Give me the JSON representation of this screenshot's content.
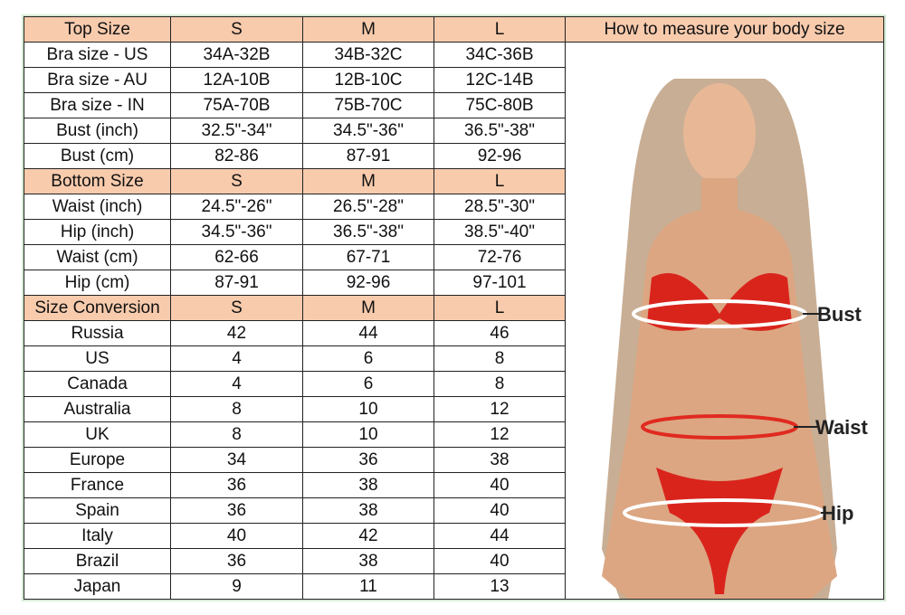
{
  "measure_title": "How to measure your body size",
  "sections": [
    {
      "header": [
        "Top Size",
        "S",
        "M",
        "L"
      ],
      "rows": [
        [
          "Bra size - US",
          "34A-32B",
          "34B-32C",
          "34C-36B"
        ],
        [
          "Bra size - AU",
          "12A-10B",
          "12B-10C",
          "12C-14B"
        ],
        [
          "Bra size - IN",
          "75A-70B",
          "75B-70C",
          "75C-80B"
        ],
        [
          "Bust (inch)",
          "32.5\"-34\"",
          "34.5\"-36\"",
          "36.5\"-38\""
        ],
        [
          "Bust (cm)",
          "82-86",
          "87-91",
          "92-96"
        ]
      ]
    },
    {
      "header": [
        "Bottom Size",
        "S",
        "M",
        "L"
      ],
      "rows": [
        [
          "Waist (inch)",
          "24.5\"-26\"",
          "26.5\"-28\"",
          "28.5\"-30\""
        ],
        [
          "Hip (inch)",
          "34.5\"-36\"",
          "36.5\"-38\"",
          "38.5\"-40\""
        ],
        [
          "Waist (cm)",
          "62-66",
          "67-71",
          "72-76"
        ],
        [
          "Hip (cm)",
          "87-91",
          "92-96",
          "97-101"
        ]
      ]
    },
    {
      "header": [
        "Size Conversion",
        "S",
        "M",
        "L"
      ],
      "rows": [
        [
          "Russia",
          "42",
          "44",
          "46"
        ],
        [
          "US",
          "4",
          "6",
          "8"
        ],
        [
          "Canada",
          "4",
          "6",
          "8"
        ],
        [
          "Australia",
          "8",
          "10",
          "12"
        ],
        [
          "UK",
          "8",
          "10",
          "12"
        ],
        [
          "Europe",
          "34",
          "36",
          "38"
        ],
        [
          "France",
          "36",
          "38",
          "40"
        ],
        [
          "Spain",
          "36",
          "38",
          "40"
        ],
        [
          "Italy",
          "40",
          "42",
          "44"
        ],
        [
          "Brazil",
          "36",
          "38",
          "40"
        ],
        [
          "Japan",
          "9",
          "11",
          "13"
        ]
      ]
    }
  ],
  "body_labels": {
    "bust": "Bust",
    "waist": "Waist",
    "hip": "Hip"
  },
  "colors": {
    "header_bg": "#f8cbad",
    "swimsuit": "#d9241c",
    "outline": "#d5ead5"
  }
}
